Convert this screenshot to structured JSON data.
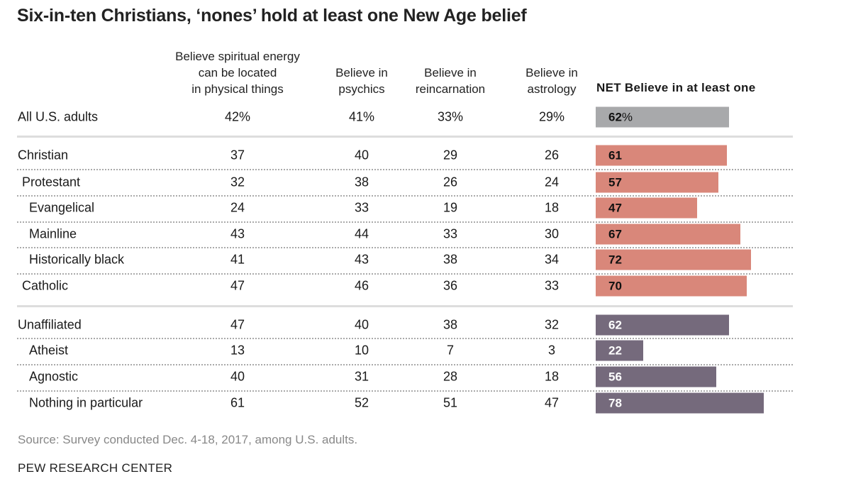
{
  "chart_data": {
    "type": "table",
    "title": "Six-in-ten Christians, ‘nones’ hold at least one New Age belief",
    "columns": [
      "Believe spiritual energy can be located in physical things",
      "Believe in psychics",
      "Believe in reincarnation",
      "Believe in astrology",
      "NET Believe in at least one"
    ],
    "column_lines": [
      [
        "Believe spiritual energy",
        "can be located",
        "in physical things"
      ],
      [
        "Believe in",
        "psychics"
      ],
      [
        "Believe in",
        "reincarnation"
      ],
      [
        "Believe in",
        "astrology"
      ]
    ],
    "net_header": "NET Believe in at least one",
    "rows": [
      {
        "label": "All U.S. adults",
        "indent": 0,
        "group": "all",
        "values": [
          "42%",
          "41%",
          "33%",
          "29%"
        ],
        "net": 62,
        "net_label": "62",
        "net_suffix": "%"
      },
      {
        "label": "Christian",
        "indent": 0,
        "group": "christian",
        "values": [
          "37",
          "40",
          "29",
          "26"
        ],
        "net": 61,
        "net_label": "61"
      },
      {
        "label": "Protestant",
        "indent": 1,
        "group": "christian",
        "values": [
          "32",
          "38",
          "26",
          "24"
        ],
        "net": 57,
        "net_label": "57"
      },
      {
        "label": "Evangelical",
        "indent": 2,
        "group": "christian",
        "values": [
          "24",
          "33",
          "19",
          "18"
        ],
        "net": 47,
        "net_label": "47"
      },
      {
        "label": "Mainline",
        "indent": 2,
        "group": "christian",
        "values": [
          "43",
          "44",
          "33",
          "30"
        ],
        "net": 67,
        "net_label": "67"
      },
      {
        "label": "Historically black",
        "indent": 2,
        "group": "christian",
        "values": [
          "41",
          "43",
          "38",
          "34"
        ],
        "net": 72,
        "net_label": "72"
      },
      {
        "label": "Catholic",
        "indent": 1,
        "group": "christian",
        "values": [
          "47",
          "46",
          "36",
          "33"
        ],
        "net": 70,
        "net_label": "70"
      },
      {
        "label": "Unaffiliated",
        "indent": 0,
        "group": "unaffiliated",
        "values": [
          "47",
          "40",
          "38",
          "32"
        ],
        "net": 62,
        "net_label": "62"
      },
      {
        "label": "Atheist",
        "indent": 2,
        "group": "unaffiliated",
        "values": [
          "13",
          "10",
          "7",
          "3"
        ],
        "net": 22,
        "net_label": "22"
      },
      {
        "label": "Agnostic",
        "indent": 2,
        "group": "unaffiliated",
        "values": [
          "40",
          "31",
          "28",
          "18"
        ],
        "net": 56,
        "net_label": "56"
      },
      {
        "label": "Nothing in particular",
        "indent": 2,
        "group": "unaffiliated",
        "values": [
          "61",
          "52",
          "51",
          "47"
        ],
        "net": 78,
        "net_label": "78"
      }
    ],
    "colors": {
      "all": "#a8a9ab",
      "christian": "#d9877a",
      "unaffiliated": "#756a7c"
    }
  },
  "footer": {
    "source": "Source: Survey conducted Dec. 4-18, 2017, among U.S. adults.",
    "brand": "PEW RESEARCH CENTER"
  }
}
